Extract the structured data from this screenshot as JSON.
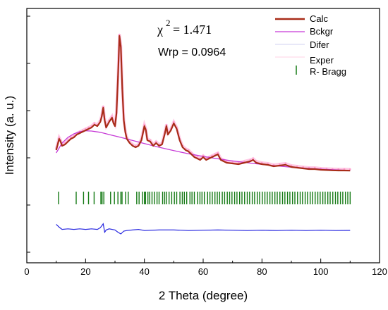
{
  "chart_data": {
    "type": "line",
    "title": "",
    "xlabel": "2 Theta (degree)",
    "ylabel": "Intensity (a. u.)",
    "xlim": [
      0,
      120
    ],
    "xticks": [
      "0",
      "20",
      "40",
      "60",
      "80",
      "100",
      "120"
    ],
    "yticks_labeled": false,
    "grid": false,
    "legend_position": "top-right",
    "annotations": {
      "chi_symbol": "χ",
      "chi_exponent": "2",
      "chi_value": "= 1.471",
      "wrp": "Wrp = 0.0964"
    },
    "legend": [
      "Calc",
      "Bckgr",
      "Difer",
      "Exper",
      "R- Bragg"
    ],
    "colors": {
      "calc": "#a82c18",
      "exper": "#ff9fd0",
      "bckgr": "#c639d6",
      "difer": "#2828e0",
      "bragg": "#157a15"
    },
    "series": [
      {
        "name": "Calc",
        "x": [
          10,
          10.5,
          11,
          11.5,
          12,
          13,
          14,
          15,
          16,
          17,
          18,
          19,
          20,
          21,
          22,
          23,
          24,
          25,
          25.5,
          26,
          26.5,
          27,
          28,
          29,
          29.5,
          30,
          30.5,
          31,
          31.5,
          32,
          32.5,
          33,
          33.5,
          34,
          35,
          36,
          37,
          38,
          39,
          40,
          40.5,
          41,
          42,
          43,
          44,
          45,
          46,
          47,
          47.5,
          48,
          49,
          50,
          51,
          52,
          53,
          54,
          55,
          56,
          57,
          58,
          59,
          60,
          61,
          62,
          63,
          64,
          65,
          66,
          67,
          68,
          70,
          72,
          74,
          76,
          77,
          78,
          80,
          82,
          84,
          86,
          88,
          90,
          92,
          94,
          96,
          98,
          100,
          102,
          104,
          106,
          108,
          110
        ],
        "y": [
          0.19,
          0.23,
          0.27,
          0.25,
          0.22,
          0.23,
          0.25,
          0.27,
          0.28,
          0.3,
          0.31,
          0.32,
          0.33,
          0.34,
          0.35,
          0.37,
          0.36,
          0.39,
          0.43,
          0.49,
          0.4,
          0.35,
          0.39,
          0.42,
          0.38,
          0.36,
          0.45,
          0.7,
          1.0,
          0.92,
          0.62,
          0.4,
          0.32,
          0.27,
          0.24,
          0.22,
          0.21,
          0.22,
          0.26,
          0.36,
          0.33,
          0.26,
          0.25,
          0.22,
          0.24,
          0.22,
          0.23,
          0.31,
          0.36,
          0.3,
          0.33,
          0.38,
          0.34,
          0.26,
          0.21,
          0.19,
          0.18,
          0.16,
          0.14,
          0.13,
          0.12,
          0.14,
          0.12,
          0.13,
          0.14,
          0.15,
          0.16,
          0.12,
          0.11,
          0.1,
          0.095,
          0.09,
          0.1,
          0.11,
          0.12,
          0.1,
          0.09,
          0.085,
          0.075,
          0.08,
          0.085,
          0.07,
          0.065,
          0.06,
          0.055,
          0.055,
          0.05,
          0.048,
          0.046,
          0.045,
          0.045,
          0.044
        ]
      },
      {
        "name": "Bckgr",
        "x": [
          10,
          12,
          14,
          16,
          18,
          20,
          22,
          25,
          28,
          32,
          36,
          40,
          45,
          50,
          55,
          60,
          65,
          70,
          75,
          80,
          85,
          90,
          95,
          100,
          105,
          110
        ],
        "y": [
          0.17,
          0.24,
          0.28,
          0.305,
          0.32,
          0.327,
          0.325,
          0.316,
          0.3,
          0.28,
          0.258,
          0.236,
          0.21,
          0.186,
          0.164,
          0.145,
          0.128,
          0.113,
          0.1,
          0.088,
          0.078,
          0.068,
          0.061,
          0.055,
          0.05,
          0.045
        ]
      },
      {
        "name": "Exper",
        "x": [
          10,
          10.5,
          11,
          11.5,
          12,
          13,
          14,
          15,
          16,
          17,
          18,
          19,
          20,
          21,
          22,
          23,
          24,
          25,
          25.5,
          26,
          26.5,
          27,
          28,
          29,
          29.5,
          30,
          30.5,
          31,
          31.5,
          32,
          32.5,
          33,
          33.5,
          34,
          35,
          36,
          37,
          38,
          39,
          40,
          40.5,
          41,
          42,
          43,
          44,
          45,
          46,
          47,
          47.5,
          48,
          49,
          50,
          51,
          52,
          53,
          54,
          55,
          56,
          57,
          58,
          59,
          60,
          61,
          62,
          63,
          64,
          65,
          66,
          67,
          68,
          70,
          72,
          74,
          76,
          77,
          78,
          80,
          82,
          84,
          86,
          88,
          90,
          92,
          94,
          96,
          98,
          100,
          102,
          104,
          106,
          108,
          110
        ],
        "y": [
          0.2,
          0.24,
          0.28,
          0.26,
          0.23,
          0.24,
          0.26,
          0.28,
          0.29,
          0.31,
          0.32,
          0.33,
          0.34,
          0.35,
          0.36,
          0.38,
          0.37,
          0.4,
          0.44,
          0.5,
          0.41,
          0.36,
          0.4,
          0.43,
          0.39,
          0.37,
          0.46,
          0.71,
          1.01,
          0.93,
          0.63,
          0.41,
          0.33,
          0.28,
          0.25,
          0.23,
          0.22,
          0.23,
          0.27,
          0.37,
          0.34,
          0.27,
          0.26,
          0.23,
          0.25,
          0.23,
          0.24,
          0.32,
          0.37,
          0.31,
          0.34,
          0.39,
          0.35,
          0.27,
          0.22,
          0.2,
          0.19,
          0.17,
          0.15,
          0.14,
          0.13,
          0.15,
          0.13,
          0.14,
          0.15,
          0.16,
          0.17,
          0.13,
          0.12,
          0.11,
          0.105,
          0.1,
          0.11,
          0.12,
          0.13,
          0.11,
          0.1,
          0.095,
          0.085,
          0.09,
          0.095,
          0.08,
          0.075,
          0.07,
          0.065,
          0.065,
          0.06,
          0.058,
          0.056,
          0.055,
          0.055,
          0.054
        ]
      },
      {
        "name": "Difer",
        "x": [
          10,
          11,
          12,
          14,
          16,
          18,
          20,
          22,
          24,
          25,
          26,
          26.5,
          27,
          28,
          30,
          31,
          32,
          33,
          34,
          36,
          38,
          40,
          45,
          50,
          55,
          60,
          65,
          70,
          75,
          80,
          85,
          90,
          95,
          100,
          105,
          110
        ],
        "y": [
          0.02,
          -0.03,
          -0.07,
          -0.06,
          -0.07,
          -0.06,
          -0.07,
          -0.06,
          -0.07,
          -0.04,
          0.03,
          -0.12,
          -0.08,
          -0.06,
          -0.08,
          -0.12,
          -0.15,
          -0.1,
          -0.09,
          -0.08,
          -0.07,
          -0.09,
          -0.08,
          -0.08,
          -0.09,
          -0.085,
          -0.08,
          -0.085,
          -0.09,
          -0.085,
          -0.09,
          -0.085,
          -0.09,
          -0.085,
          -0.09,
          -0.088
        ]
      }
    ],
    "bragg_reflections": [
      10.8,
      16.8,
      19.3,
      21.0,
      22.9,
      25.2,
      25.6,
      26.2,
      28.5,
      29.8,
      31.0,
      32.0,
      32.4,
      33.6,
      34.5,
      37.4,
      38.2,
      39.3,
      40.0,
      40.4,
      41.2,
      41.8,
      42.6,
      43.4,
      44.3,
      45.0,
      46.2,
      46.9,
      47.5,
      48.4,
      49.3,
      50.2,
      51.0,
      52.1,
      52.9,
      53.6,
      54.4,
      55.5,
      56.2,
      57.0,
      58.1,
      58.9,
      59.6,
      60.4,
      61.5,
      62.3,
      63.1,
      64.0,
      64.8,
      65.6,
      66.5,
      67.3,
      68.2,
      69.0,
      69.8,
      70.7,
      71.5,
      72.4,
      73.2,
      74.1,
      75.0,
      75.8,
      76.7,
      77.5,
      78.4,
      79.2,
      80.1,
      81.0,
      81.8,
      82.7,
      83.5,
      84.4,
      85.2,
      86.1,
      87.0,
      87.8,
      88.7,
      89.5,
      90.4,
      91.2,
      92.1,
      93.0,
      93.8,
      94.7,
      95.5,
      96.4,
      97.2,
      98.1,
      99.0,
      99.8,
      100.7,
      101.5,
      102.4,
      103.2,
      104.1,
      105.0,
      105.8,
      106.7,
      107.5,
      108.4,
      109.2,
      110.0
    ]
  }
}
